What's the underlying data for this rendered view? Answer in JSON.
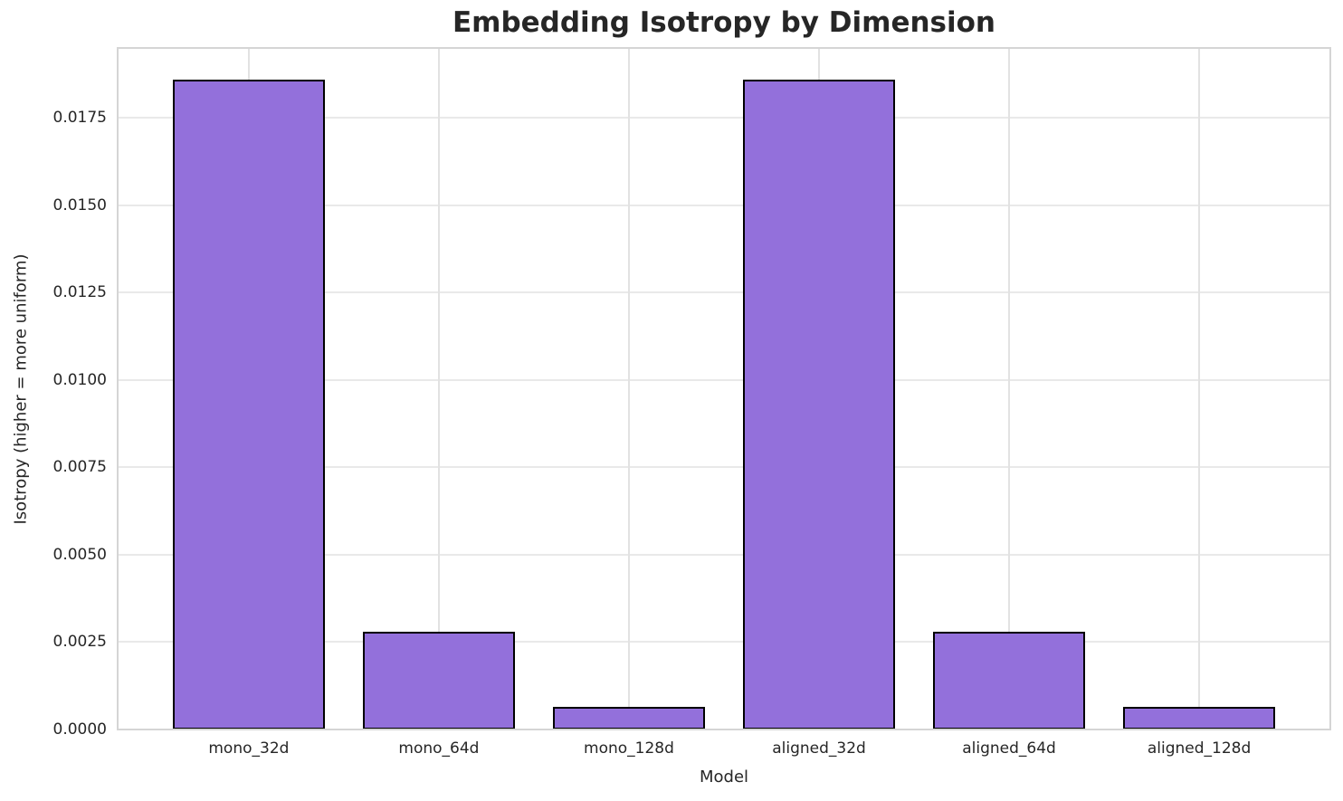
{
  "chart_data": {
    "type": "bar",
    "title": "Embedding Isotropy by Dimension",
    "xlabel": "Model",
    "ylabel": "Isotropy (higher = more uniform)",
    "categories": [
      "mono_32d",
      "mono_64d",
      "mono_128d",
      "aligned_32d",
      "aligned_64d",
      "aligned_128d"
    ],
    "values": [
      0.0186,
      0.0028,
      0.00065,
      0.0186,
      0.0028,
      0.00065
    ],
    "ytick_labels": [
      "0.0000",
      "0.0025",
      "0.0050",
      "0.0075",
      "0.0100",
      "0.0125",
      "0.0150",
      "0.0175"
    ],
    "ylim": [
      0,
      0.0195
    ],
    "grid": true,
    "legend_position": "none",
    "colors": {
      "bar_fill": "#9370DB",
      "bar_edge": "#000000",
      "grid_horizontal": "#e9e9e9",
      "grid_vertical": "#e2e2e2",
      "spine": "#d5d5d5",
      "text": "#262626"
    }
  }
}
